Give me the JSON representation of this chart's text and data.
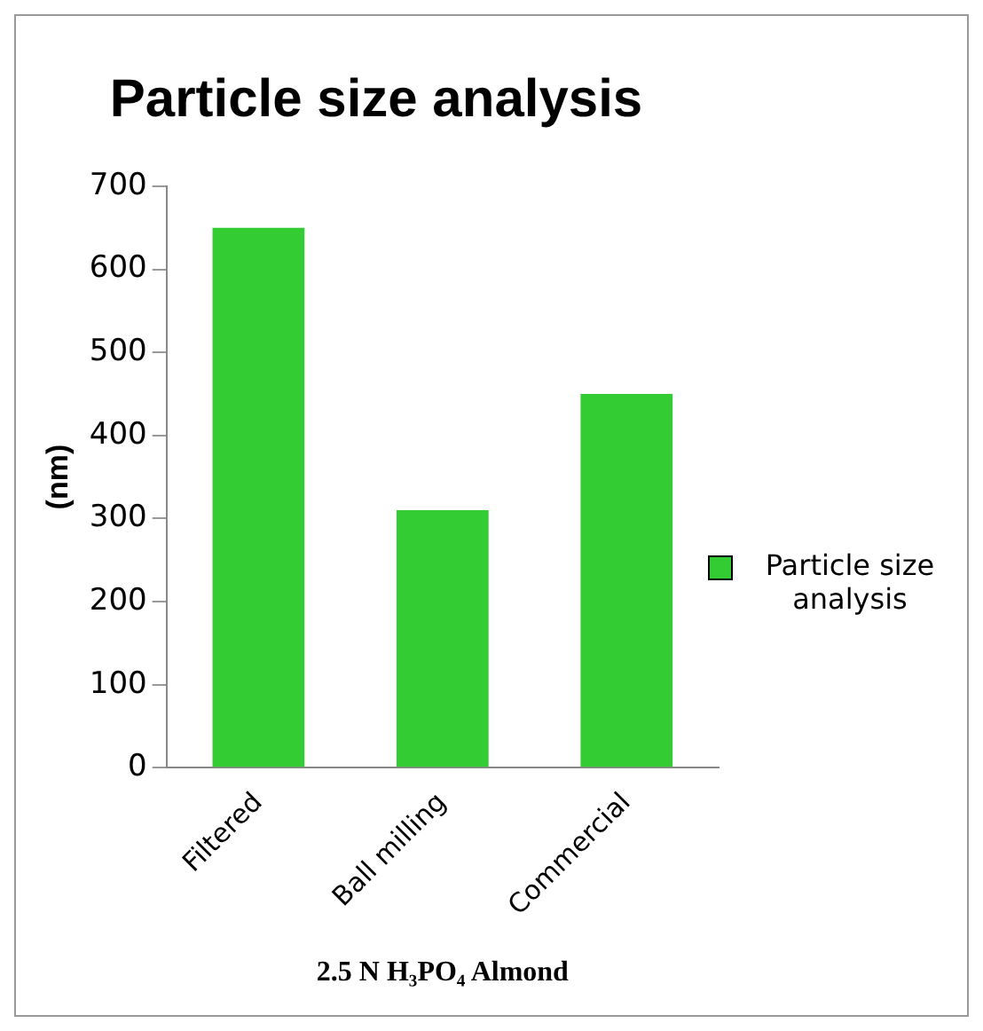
{
  "chart_data": {
    "type": "bar",
    "title": "Particle size analysis",
    "ylabel": "(nm)",
    "xlabel": "2.5 N H₃PO₄ Almond",
    "categories": [
      "Filtered",
      "Ball milling",
      "Commercial"
    ],
    "series": [
      {
        "name": "Particle size analysis",
        "color": "#33cc33",
        "values": [
          650,
          310,
          450
        ]
      }
    ],
    "ylim": [
      0,
      700
    ],
    "yticks": [
      0,
      100,
      200,
      300,
      400,
      500,
      600,
      700
    ],
    "grid": false,
    "legend": "right"
  }
}
